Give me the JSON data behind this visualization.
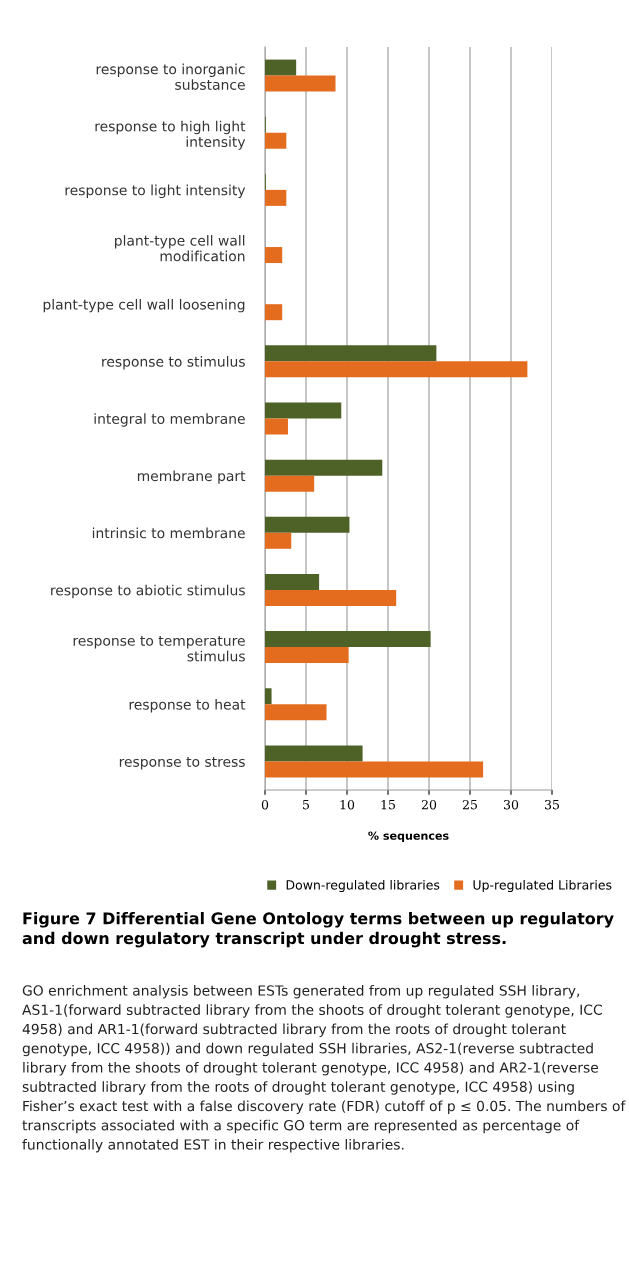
{
  "chart_data": {
    "type": "bar",
    "orientation": "horizontal",
    "title": "Figure 7 Differential Gene Ontology terms between up regulatory and down regulatory transcript under drought stress.",
    "xlabel": "% sequences",
    "categories": [
      "response to inorganic\nsubstance",
      "response to high light\nintensity",
      "response to light intensity",
      "plant-type cell wall\nmodification",
      "plant-type cell wall loosening",
      "response to stimulus",
      "integral to membrane",
      "membrane part",
      "intrinsic to membrane",
      "response to abiotic stimulus",
      "response to temperature\nstimulus",
      "response to heat",
      "response to stress"
    ],
    "series": [
      {
        "name": "Down-regulated libraries",
        "color": "#4e6228",
        "values": [
          3.8,
          0.1,
          0.1,
          0,
          0,
          20.9,
          9.3,
          14.3,
          10.3,
          6.6,
          20.2,
          0.8,
          11.9
        ]
      },
      {
        "name": "Up-regulated Libraries",
        "color": "#e36c1f",
        "values": [
          8.6,
          2.6,
          2.6,
          2.1,
          2.1,
          32.0,
          2.8,
          6.0,
          3.2,
          16.0,
          10.2,
          7.5,
          26.6
        ]
      }
    ],
    "xlim": [
      0,
      35
    ],
    "xticks": [
      0,
      5,
      10,
      15,
      20,
      25,
      30,
      35
    ],
    "grid": "x",
    "legend": "bottom",
    "annotations": [
      "GO enrichment analysis between ESTs generated from up regulated SSH library, AS1-1(forward subtracted library from the shoots of drought tolerant genotype, ICC 4958) and AR1-1(forward subtracted library from the roots of drought tolerant genotype, ICC 4958)) and down regulated SSH libraries, AS2-1(reverse subtracted library from the shoots of drought tolerant genotype, ICC 4958) and AR2-1(reverse subtracted library from the roots of drought tolerant genotype, ICC 4958) using Fisher’s exact test with a false discovery rate (FDR) cutoff of p ≤ 0.05. The numbers of transcripts associated with a specific GO term are represented as percentage of functionally annotated EST in their respective libraries."
    ]
  }
}
